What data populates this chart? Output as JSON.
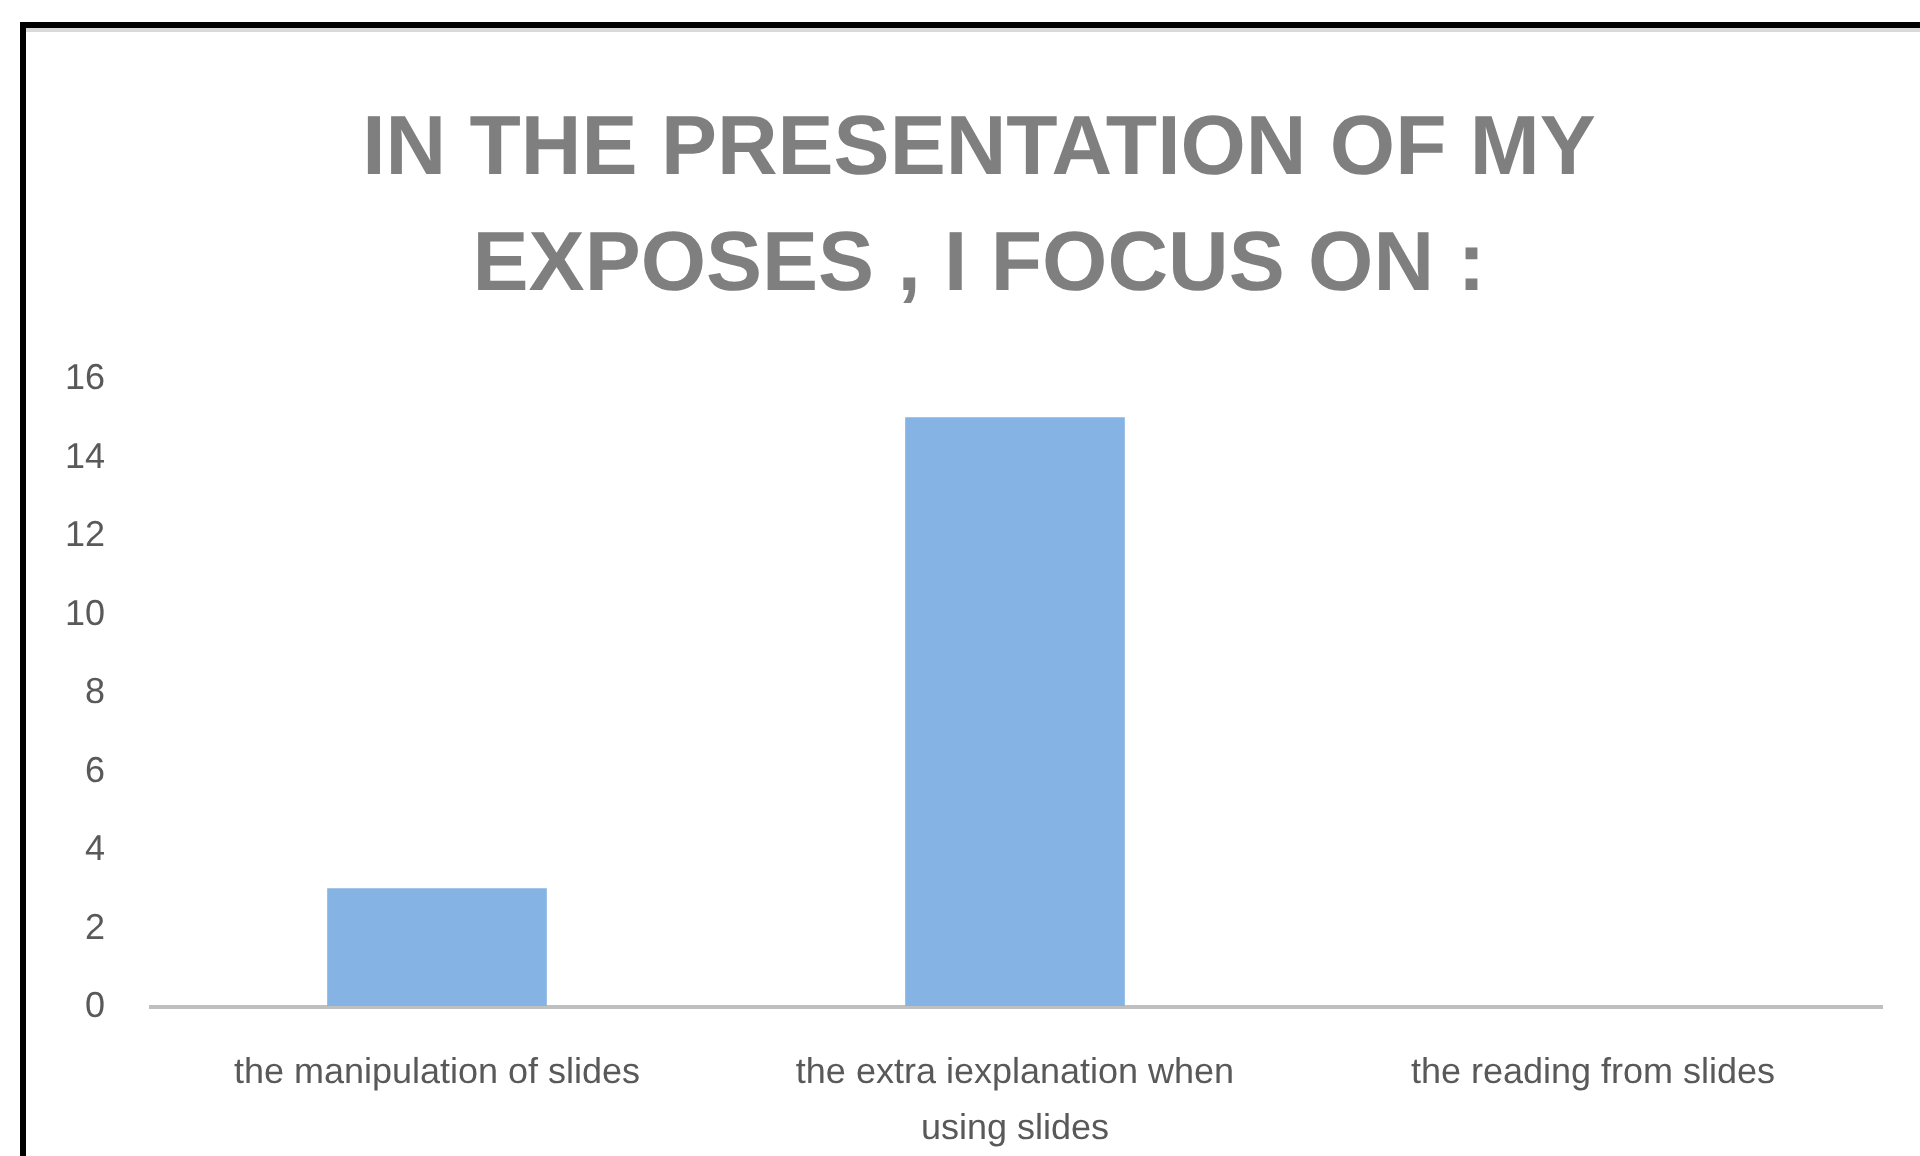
{
  "chart_data": {
    "type": "bar",
    "title": "IN THE PRESENTATION OF MY EXPOSES , I FOCUS ON :",
    "categories": [
      "the manipulation of slides",
      "the extra iexplanation when using slides",
      "the reading from slides"
    ],
    "values": [
      3,
      15,
      0
    ],
    "color": "#85b3e3",
    "ylim": [
      0,
      16
    ],
    "yticks": [
      0,
      2,
      4,
      6,
      8,
      10,
      12,
      14,
      16
    ]
  }
}
